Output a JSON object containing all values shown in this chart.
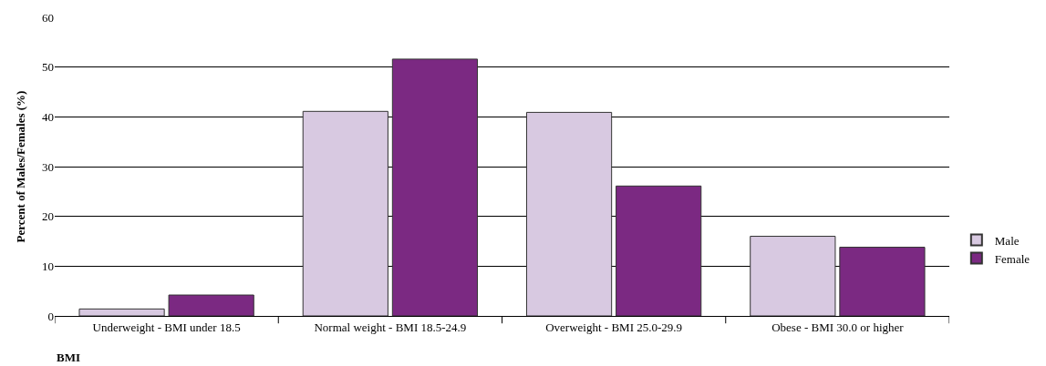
{
  "chart_data": {
    "type": "bar",
    "categories": [
      "Underweight - BMI under 18.5",
      "Normal weight - BMI 18.5-24.9",
      "Overweight - BMI 25.0-29.9",
      "Obese - BMI 30.0 or higher"
    ],
    "series": [
      {
        "name": "Male",
        "color": "#d8c9e1",
        "values": [
          1.4,
          41.1,
          40.9,
          16.0
        ]
      },
      {
        "name": "Female",
        "color": "#7b2982",
        "values": [
          4.2,
          51.6,
          26.1,
          13.8
        ]
      }
    ],
    "xlabel": "BMI",
    "ylabel": "Percent of Males/Females (%)",
    "ylim": [
      0,
      60
    ],
    "yticks": [
      0,
      10,
      20,
      30,
      40,
      50,
      60
    ],
    "grid": "y",
    "legend": "right"
  }
}
